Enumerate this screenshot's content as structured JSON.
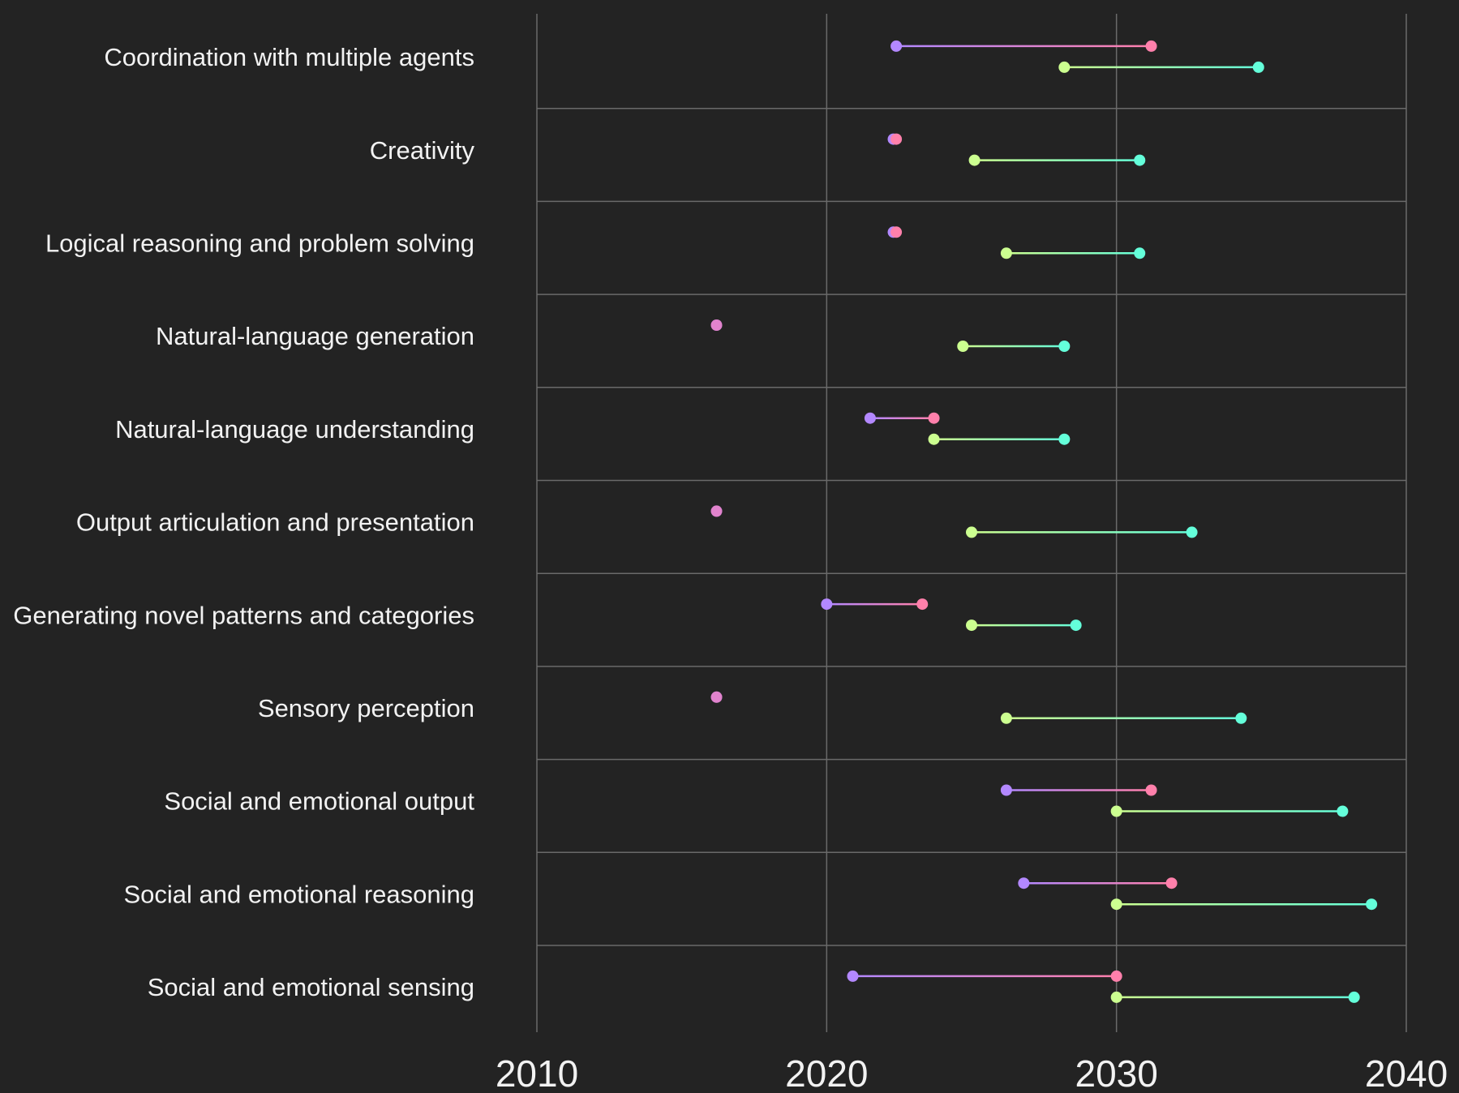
{
  "chart_data": {
    "type": "dumbbell",
    "categories": [
      "Coordination with multiple agents",
      "Creativity",
      "Logical reasoning and problem solving",
      "Natural-language generation",
      "Natural-language understanding",
      "Output articulation and presentation",
      "Generating novel patterns and categories",
      "Sensory perception",
      "Social and emotional output",
      "Social and emotional reasoning",
      "Social and emotional sensing"
    ],
    "series": [
      {
        "start_color": "#b388ff",
        "end_color": "#ff80ab",
        "start": [
          2022.4,
          2022.3,
          2022.3,
          2016.2,
          2021.5,
          2016.2,
          2020.0,
          2016.2,
          2026.2,
          2026.8,
          2020.9
        ],
        "end": [
          2031.2,
          2022.4,
          2022.4,
          2016.2,
          2023.7,
          2016.2,
          2023.3,
          2016.2,
          2031.2,
          2031.9,
          2030.0
        ]
      },
      {
        "start_color": "#ccff90",
        "end_color": "#64ffda",
        "start": [
          2028.2,
          2025.1,
          2026.2,
          2024.7,
          2023.7,
          2025.0,
          2025.0,
          2026.2,
          2030.0,
          2030.0,
          2030.0
        ],
        "end": [
          2034.9,
          2030.8,
          2030.8,
          2028.2,
          2028.2,
          2032.6,
          2028.6,
          2034.3,
          2037.8,
          2038.8,
          2038.2
        ]
      }
    ],
    "xlim": [
      2010,
      2040
    ],
    "xticks": [
      2010,
      2020,
      2030,
      2040
    ],
    "grid": true
  }
}
